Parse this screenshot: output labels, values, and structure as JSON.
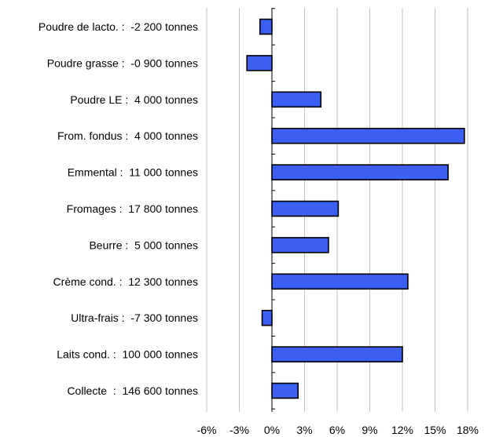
{
  "chart_data": {
    "type": "bar",
    "orientation": "horizontal",
    "title": "",
    "bar_color": "#3A5FF2",
    "bar_stroke": "#000000",
    "grid_color": "#c0c0c0",
    "grid": true,
    "xlim": [
      -6,
      18
    ],
    "x_ticks": [
      -6,
      -3,
      0,
      3,
      6,
      9,
      12,
      15,
      18
    ],
    "x_tick_labels": [
      "-6%",
      "-3%",
      "0%",
      "3%",
      "6%",
      "9%",
      "12%",
      "15%",
      "18%"
    ],
    "categories": [
      "Poudre de lacto. :  -2 200 tonnes",
      "Poudre grasse :  -0 900 tonnes",
      "Poudre LE :  4 000 tonnes",
      "From. fondus :  4 000 tonnes",
      "Emmental :  11 000 tonnes",
      "Fromages :  17 800 tonnes",
      "Beurre :  5 000 tonnes",
      "Crème cond. :  12 300 tonnes",
      "Ultra-frais :  -7 300 tonnes",
      "Laits cond. :  100 000 tonnes",
      "Collecte  :  146 600 tonnes"
    ],
    "values": [
      -1.1,
      -2.3,
      4.5,
      17.7,
      16.2,
      6.1,
      5.2,
      12.5,
      -0.9,
      12.0,
      2.4
    ]
  }
}
